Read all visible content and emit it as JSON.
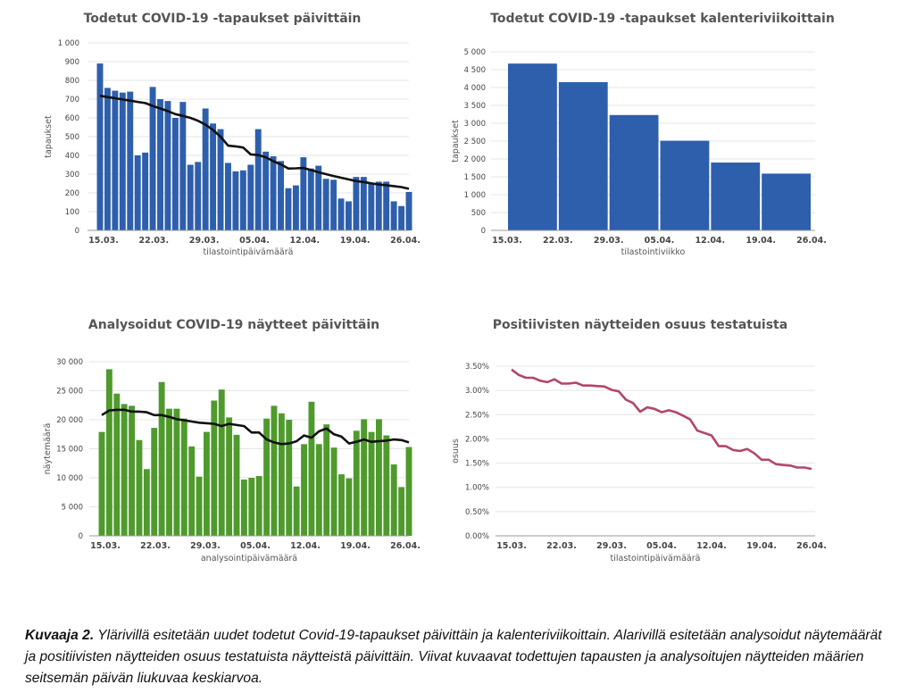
{
  "caption": {
    "label": "Kuvaaja 2.",
    "text": " Ylärivillä esitetään uudet todetut Covid-19-tapaukset päivittäin ja kalenteriviikoittain. Alarivillä esitetään analysoidut näytemäärät ja positiivisten näytteiden osuus testatuista näytteistä päivittäin. Viivat kuvaavat todettujen tapausten ja analysoitujen näytteiden määrien seitsemän päivän liukuvaa keskiarvoa."
  },
  "colors": {
    "blue": "#2e5fad",
    "green": "#4f9a2c",
    "line": "#111111",
    "pink": "#b2456c",
    "grid": "#e4e4e4"
  },
  "chart_data": [
    {
      "id": "daily-cases",
      "type": "bar",
      "title": "Todetut COVID-19 -tapaukset päivittäin",
      "xlabel": "tilastointipäivämäärä",
      "ylabel": "tapaukset",
      "ylim": [
        0,
        1000
      ],
      "yticks": [
        0,
        100,
        200,
        300,
        400,
        500,
        600,
        700,
        800,
        900,
        1000
      ],
      "ytick_labels": [
        "0",
        "100",
        "200",
        "300",
        "400",
        "500",
        "600",
        "700",
        "800",
        "900",
        "1 000"
      ],
      "xtick_labels": [
        "15.03.",
        "22.03.",
        "29.03.",
        "05.04.",
        "12.04.",
        "19.04.",
        "26.04."
      ],
      "bar_color": "#2e5fad",
      "values": [
        890,
        760,
        745,
        735,
        740,
        400,
        415,
        765,
        700,
        690,
        600,
        685,
        350,
        365,
        650,
        570,
        540,
        360,
        315,
        320,
        350,
        540,
        420,
        395,
        370,
        225,
        240,
        390,
        330,
        345,
        275,
        270,
        170,
        155,
        285,
        285,
        250,
        260,
        260,
        155,
        130,
        205
      ],
      "moving_average": [
        718,
        711,
        705,
        698,
        692,
        685,
        679,
        664,
        650,
        636,
        620,
        611,
        600,
        585,
        564,
        535,
        500,
        452,
        448,
        442,
        405,
        402,
        390,
        369,
        352,
        330,
        331,
        333,
        322,
        310,
        300,
        290,
        281,
        272,
        263,
        258,
        251,
        245,
        241,
        236,
        231,
        222
      ]
    },
    {
      "id": "weekly-cases",
      "type": "bar",
      "title": "Todetut COVID-19 -tapaukset kalenteriviikoittain",
      "xlabel": "tilastointiviikko",
      "ylabel": "tapaukset",
      "ylim": [
        0,
        5000
      ],
      "yticks": [
        0,
        500,
        1000,
        1500,
        2000,
        2500,
        3000,
        3500,
        4000,
        4500,
        5000
      ],
      "ytick_labels": [
        "0",
        "500",
        "1 000",
        "1 500",
        "2 000",
        "2 500",
        "3 000",
        "3 500",
        "4 000",
        "4 500",
        "5 000"
      ],
      "xtick_labels": [
        "15.03.",
        "22.03.",
        "29.03.",
        "05.04.",
        "12.04.",
        "19.04.",
        "26.04."
      ],
      "bar_color": "#2e5fad",
      "values": [
        4670,
        4150,
        3230,
        2510,
        1900,
        1590
      ]
    },
    {
      "id": "daily-samples",
      "type": "bar",
      "title": "Analysoidut COVID-19 näytteet päivittäin",
      "xlabel": "analysointipäivämäärä",
      "ylabel": "näytemäärä",
      "ylim": [
        0,
        30000
      ],
      "yticks": [
        0,
        5000,
        10000,
        15000,
        20000,
        25000,
        30000
      ],
      "ytick_labels": [
        "0",
        "5 000",
        "10 000",
        "15 000",
        "20 000",
        "25 000",
        "30 000"
      ],
      "xtick_labels": [
        "15.03.",
        "22.03.",
        "29.03.",
        "05.04.",
        "12.04.",
        "19.04.",
        "26.04."
      ],
      "bar_color": "#4f9a2c",
      "values": [
        17900,
        28700,
        24500,
        22700,
        22400,
        16500,
        11500,
        18600,
        26500,
        21900,
        21900,
        20200,
        15400,
        10200,
        17900,
        23300,
        25200,
        20400,
        17400,
        9700,
        10000,
        10300,
        20200,
        22400,
        21100,
        20000,
        8500,
        15800,
        23100,
        15800,
        19200,
        15200,
        10600,
        9900,
        18100,
        20100,
        17900,
        20100,
        17300,
        12300,
        8400,
        15300
      ],
      "moving_average": [
        20800,
        21600,
        21700,
        21700,
        21400,
        21400,
        21300,
        20800,
        20800,
        20500,
        20100,
        19900,
        19700,
        19500,
        19400,
        19300,
        18900,
        19300,
        19100,
        18900,
        17800,
        17800,
        16600,
        16100,
        15800,
        15900,
        16300,
        17300,
        16900,
        18000,
        18500,
        17500,
        17100,
        15900,
        16200,
        16600,
        16200,
        16300,
        16400,
        16600,
        16500,
        16100
      ]
    },
    {
      "id": "positive-share",
      "type": "line",
      "title": "Positiivisten näytteiden osuus testatuista",
      "xlabel": "tilastointipäivämäärä",
      "ylabel": "osuus",
      "ylim": [
        0,
        3.5
      ],
      "yticks": [
        0,
        0.5,
        1.0,
        1.5,
        2.0,
        2.5,
        3.0,
        3.5
      ],
      "ytick_labels": [
        "0.00%",
        "0.50%",
        "1.00%",
        "1.50%",
        "2.00%",
        "2.50%",
        "3.00%",
        "3.50%"
      ],
      "xtick_labels": [
        "15.03.",
        "22.03.",
        "29.03.",
        "05.04.",
        "12.04.",
        "19.04.",
        "26.04."
      ],
      "line_color": "#b2456c",
      "values": [
        3.43,
        3.32,
        3.26,
        3.26,
        3.2,
        3.17,
        3.23,
        3.14,
        3.14,
        3.16,
        3.1,
        3.1,
        3.09,
        3.08,
        3.01,
        2.98,
        2.81,
        2.74,
        2.56,
        2.65,
        2.62,
        2.55,
        2.59,
        2.55,
        2.48,
        2.4,
        2.17,
        2.12,
        2.07,
        1.85,
        1.85,
        1.77,
        1.75,
        1.79,
        1.7,
        1.57,
        1.57,
        1.48,
        1.46,
        1.45,
        1.41,
        1.41,
        1.38
      ]
    }
  ]
}
